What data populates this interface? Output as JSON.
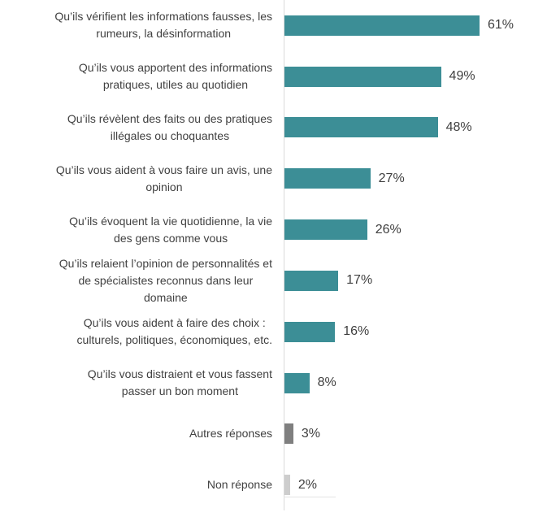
{
  "chart_data": {
    "type": "bar",
    "orientation": "horizontal",
    "title": "",
    "xlabel": "",
    "ylabel": "",
    "unit": "%",
    "xlim": [
      0,
      80
    ],
    "grid": false,
    "legend_position": "none",
    "categories": [
      "Qu’ils vérifient les informations fausses, les rumeurs, la désinformation",
      "Qu’ils vous apportent des informations pratiques, utiles au quotidien",
      "Qu’ils révèlent des faits ou des pratiques illégales ou choquantes",
      "Qu’ils vous aident à vous faire un avis, une opinion",
      "Qu’ils évoquent la vie quotidienne, la vie des gens comme vous",
      "Qu’ils relaient l’opinion de personnalités et de spécialistes reconnus dans leur domaine",
      "Qu’ils vous aident à faire des choix : culturels, politiques, économiques, etc.",
      "Qu’ils vous distraient et vous fassent passer un bon moment",
      "Autres réponses",
      "Non réponse"
    ],
    "values": [
      61,
      49,
      48,
      27,
      26,
      17,
      16,
      8,
      3,
      2
    ],
    "rows": [
      {
        "label": "Qu’ils vérifient les informations fausses, les\nrumeurs, la désinformation",
        "value": 61,
        "value_label": "61%",
        "color": "teal"
      },
      {
        "label": "Qu’ils vous apportent des informations\npratiques, utiles au quotidien",
        "value": 49,
        "value_label": "49%",
        "color": "teal"
      },
      {
        "label": "Qu’ils révèlent des faits ou des pratiques\nillégales ou choquantes",
        "value": 48,
        "value_label": "48%",
        "color": "teal"
      },
      {
        "label": "Qu’ils vous aident à vous faire un avis, une\nopinion",
        "value": 27,
        "value_label": "27%",
        "color": "teal"
      },
      {
        "label": "Qu’ils évoquent la vie quotidienne, la vie\ndes gens comme vous",
        "value": 26,
        "value_label": "26%",
        "color": "teal"
      },
      {
        "label": "Qu’ils relaient l’opinion de personnalités et\nde spécialistes reconnus dans leur\ndomaine",
        "value": 17,
        "value_label": "17%",
        "color": "teal"
      },
      {
        "label": "Qu’ils vous aident à faire des choix :\nculturels, politiques, économiques, etc.",
        "value": 16,
        "value_label": "16%",
        "color": "teal"
      },
      {
        "label": "Qu’ils vous distraient et vous fassent\npasser un bon moment",
        "value": 8,
        "value_label": "8%",
        "color": "teal"
      },
      {
        "label": "Autres réponses",
        "value": 3,
        "value_label": "3%",
        "color": "dark_gray"
      },
      {
        "label": "Non réponse",
        "value": 2,
        "value_label": "2%",
        "color": "light_gray"
      }
    ]
  },
  "colors": {
    "teal": "#3c8e96",
    "dark_gray": "#7f7f7f",
    "light_gray": "#cdcdcd",
    "axis_line": "#d9d9d9",
    "text": "#414141"
  }
}
